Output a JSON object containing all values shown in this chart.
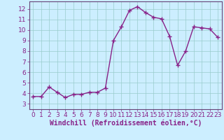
{
  "x": [
    0,
    1,
    2,
    3,
    4,
    5,
    6,
    7,
    8,
    9,
    10,
    11,
    12,
    13,
    14,
    15,
    16,
    17,
    18,
    19,
    20,
    21,
    22,
    23
  ],
  "y": [
    3.7,
    3.7,
    4.6,
    4.1,
    3.6,
    3.9,
    3.9,
    4.1,
    4.1,
    4.5,
    9.0,
    10.3,
    11.85,
    12.2,
    11.65,
    11.2,
    11.05,
    9.4,
    6.65,
    8.0,
    10.3,
    10.2,
    10.1,
    9.3
  ],
  "line_color": "#882288",
  "marker": "+",
  "marker_size": 4,
  "bg_color": "#cceeff",
  "grid_color": "#99cccc",
  "xlabel": "Windchill (Refroidissement éolien,°C)",
  "xlabel_fontsize": 7,
  "xlim": [
    -0.5,
    23.5
  ],
  "ylim": [
    2.5,
    12.7
  ],
  "yticks": [
    3,
    4,
    5,
    6,
    7,
    8,
    9,
    10,
    11,
    12
  ],
  "xticks": [
    0,
    1,
    2,
    3,
    4,
    5,
    6,
    7,
    8,
    9,
    10,
    11,
    12,
    13,
    14,
    15,
    16,
    17,
    18,
    19,
    20,
    21,
    22,
    23
  ],
  "tick_fontsize": 6.5,
  "line_width": 1.0,
  "spine_color": "#664477"
}
